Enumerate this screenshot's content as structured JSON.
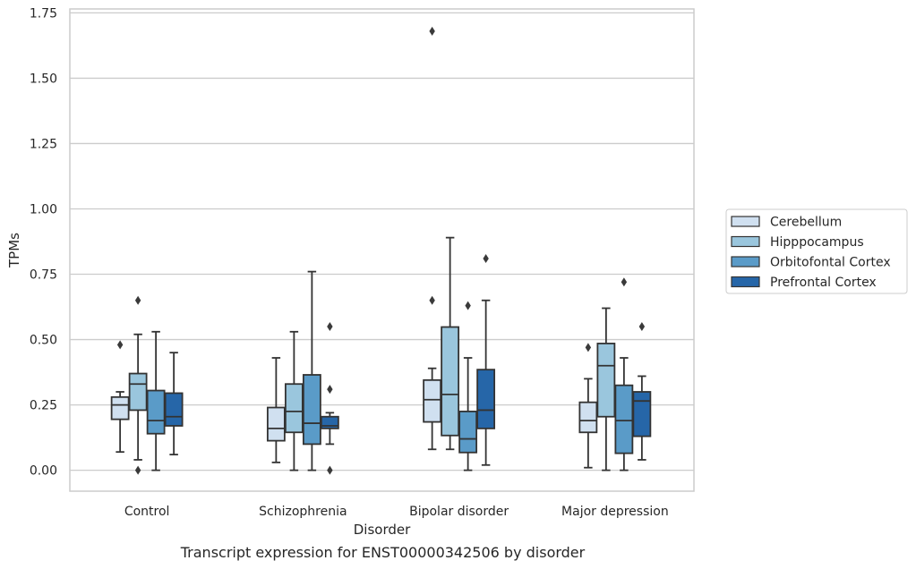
{
  "caption": "Transcript expression for ENST00000342506 by disorder",
  "colors": {
    "series": [
      "#d0e0f0",
      "#9ac6dd",
      "#5a9bc8",
      "#2666a8"
    ],
    "grid": "#cccccc",
    "box_edge": "#333333",
    "frame": "#cccccc"
  },
  "chart_data": {
    "type": "box",
    "xlabel": "Disorder",
    "ylabel": "TPMs",
    "ylim": [
      -0.08,
      1.765
    ],
    "yticks": [
      0.0,
      0.25,
      0.5,
      0.75,
      1.0,
      1.25,
      1.5,
      1.75
    ],
    "ytick_labels": [
      "0.00",
      "0.25",
      "0.50",
      "0.75",
      "1.00",
      "1.25",
      "1.50",
      "1.75"
    ],
    "grid": "horizontal",
    "legend_position": "right-outside",
    "categories": [
      "Control",
      "Schizophrenia",
      "Bipolar disorder",
      "Major depression"
    ],
    "series": [
      {
        "name": "Cerebellum",
        "boxes": [
          {
            "whisker_low": 0.07,
            "q1": 0.195,
            "median": 0.25,
            "q3": 0.28,
            "whisker_high": 0.3,
            "outliers": [
              0.48
            ]
          },
          {
            "whisker_low": 0.03,
            "q1": 0.113,
            "median": 0.16,
            "q3": 0.24,
            "whisker_high": 0.43,
            "outliers": []
          },
          {
            "whisker_low": 0.08,
            "q1": 0.185,
            "median": 0.27,
            "q3": 0.345,
            "whisker_high": 0.39,
            "outliers": [
              0.65,
              1.68
            ]
          },
          {
            "whisker_low": 0.01,
            "q1": 0.145,
            "median": 0.19,
            "q3": 0.26,
            "whisker_high": 0.35,
            "outliers": [
              0.47
            ]
          }
        ]
      },
      {
        "name": "Hipppocampus",
        "boxes": [
          {
            "whisker_low": 0.04,
            "q1": 0.23,
            "median": 0.33,
            "q3": 0.37,
            "whisker_high": 0.52,
            "outliers": [
              0.65,
              0.0
            ]
          },
          {
            "whisker_low": 0.0,
            "q1": 0.145,
            "median": 0.225,
            "q3": 0.33,
            "whisker_high": 0.53,
            "outliers": []
          },
          {
            "whisker_low": 0.08,
            "q1": 0.133,
            "median": 0.29,
            "q3": 0.548,
            "whisker_high": 0.89,
            "outliers": []
          },
          {
            "whisker_low": 0.0,
            "q1": 0.205,
            "median": 0.4,
            "q3": 0.485,
            "whisker_high": 0.62,
            "outliers": []
          }
        ]
      },
      {
        "name": "Orbitofontal Cortex",
        "boxes": [
          {
            "whisker_low": 0.0,
            "q1": 0.14,
            "median": 0.19,
            "q3": 0.305,
            "whisker_high": 0.53,
            "outliers": []
          },
          {
            "whisker_low": 0.0,
            "q1": 0.1,
            "median": 0.18,
            "q3": 0.365,
            "whisker_high": 0.76,
            "outliers": []
          },
          {
            "whisker_low": 0.0,
            "q1": 0.068,
            "median": 0.12,
            "q3": 0.225,
            "whisker_high": 0.43,
            "outliers": [
              0.63
            ]
          },
          {
            "whisker_low": 0.0,
            "q1": 0.065,
            "median": 0.19,
            "q3": 0.325,
            "whisker_high": 0.43,
            "outliers": [
              0.72
            ]
          }
        ]
      },
      {
        "name": "Prefrontal Cortex",
        "boxes": [
          {
            "whisker_low": 0.06,
            "q1": 0.17,
            "median": 0.205,
            "q3": 0.295,
            "whisker_high": 0.45,
            "outliers": []
          },
          {
            "whisker_low": 0.1,
            "q1": 0.16,
            "median": 0.17,
            "q3": 0.205,
            "whisker_high": 0.22,
            "outliers": [
              0.55,
              0.31,
              0.0
            ]
          },
          {
            "whisker_low": 0.02,
            "q1": 0.16,
            "median": 0.23,
            "q3": 0.385,
            "whisker_high": 0.65,
            "outliers": [
              0.81
            ]
          },
          {
            "whisker_low": 0.04,
            "q1": 0.13,
            "median": 0.265,
            "q3": 0.3,
            "whisker_high": 0.36,
            "outliers": [
              0.55
            ]
          }
        ]
      }
    ]
  }
}
